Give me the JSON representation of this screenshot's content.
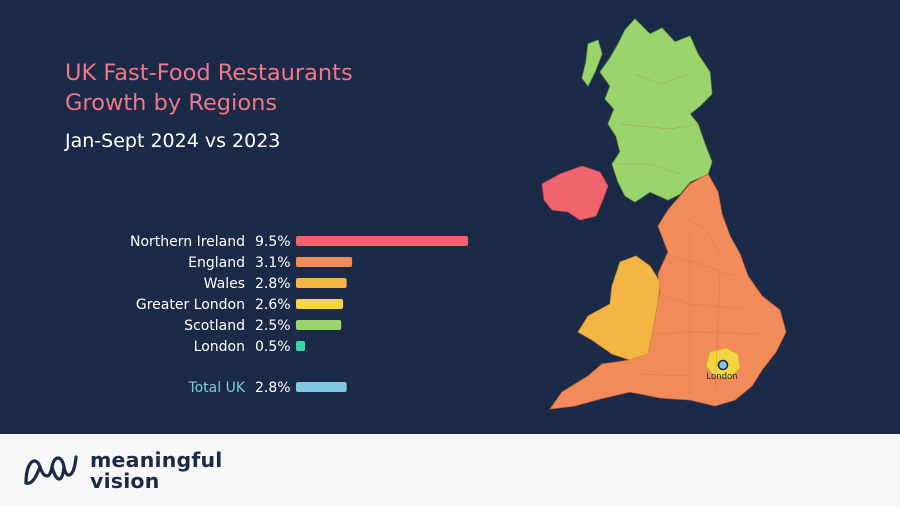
{
  "title_line1": "UK Fast-Food Restaurants",
  "title_line2": "Growth by Regions",
  "subtitle": "Jan-Sept 2024 vs 2023",
  "colors": {
    "background": "#1b2a46",
    "title": "#f0768a",
    "northern_ireland": "#f0646e",
    "england": "#f28a5a",
    "wales": "#f5b544",
    "greater_london": "#f4d442",
    "scotland": "#9bd46a",
    "london": "#3dd6a3",
    "total_uk": "#7fc8e0",
    "total_label": "#7fc8e0"
  },
  "chart_data": {
    "type": "bar",
    "orientation": "horizontal",
    "categories": [
      "Northern Ireland",
      "England",
      "Wales",
      "Greater London",
      "Scotland",
      "London"
    ],
    "values": [
      9.5,
      3.1,
      2.8,
      2.6,
      2.5,
      0.5
    ],
    "value_labels": [
      "9.5%",
      "3.1%",
      "2.8%",
      "2.6%",
      "2.5%",
      "0.5%"
    ],
    "total": {
      "category": "Total UK",
      "value": 2.8,
      "value_label": "2.8%"
    },
    "unit": "%"
  },
  "map": {
    "label": "London"
  },
  "footer": {
    "brand_line1": "meaningful",
    "brand_line2": "vision"
  }
}
